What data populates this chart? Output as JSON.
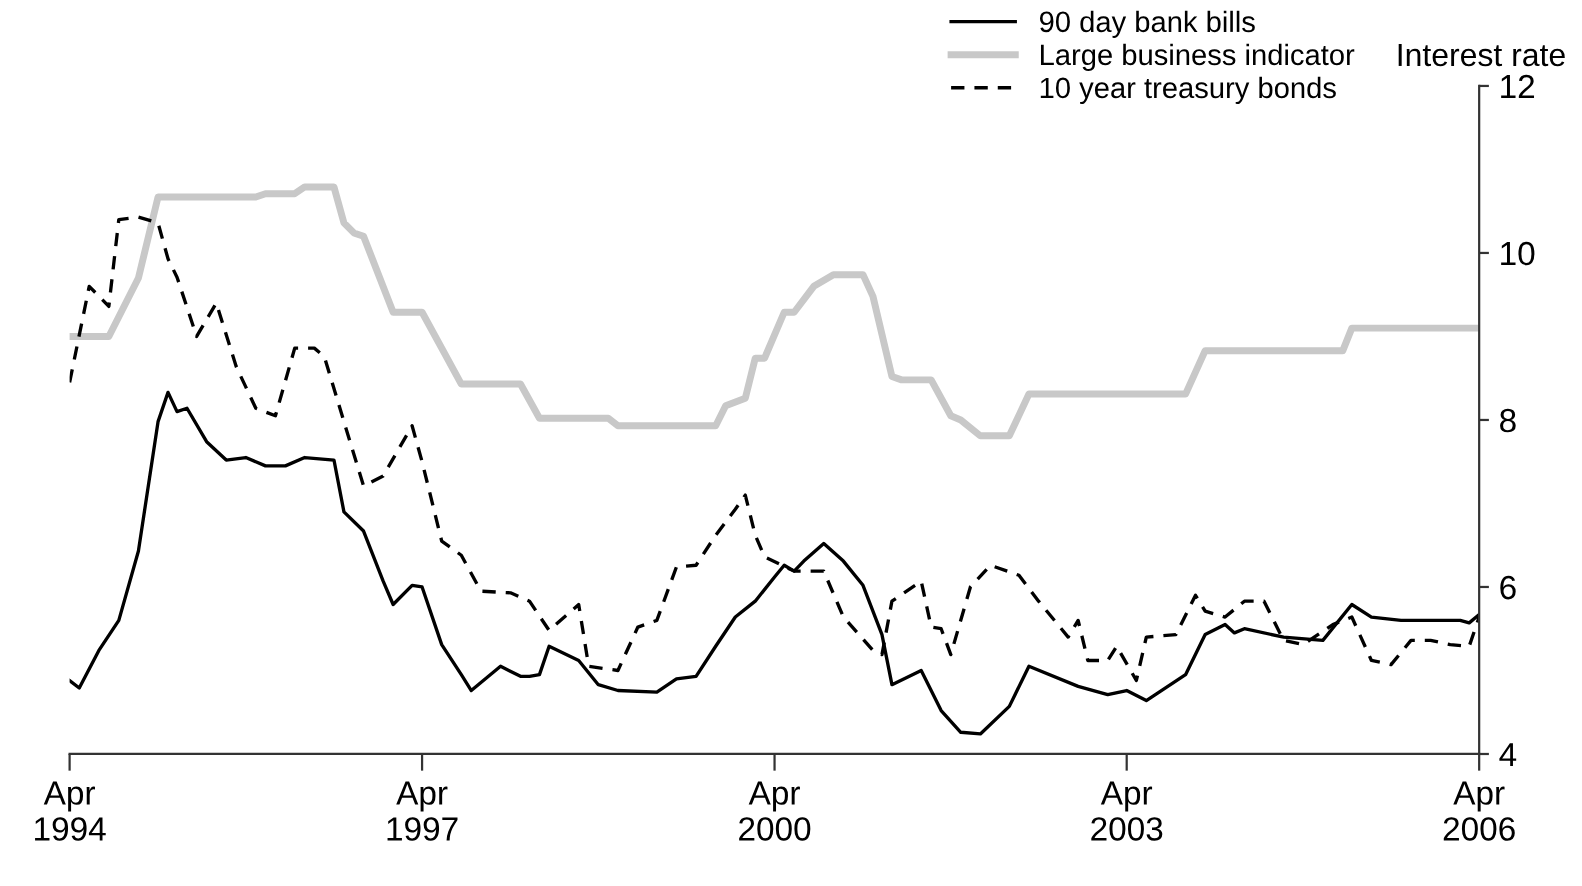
{
  "chart_data": {
    "type": "line",
    "ylabel": "Interest rate",
    "ylim": [
      4,
      12
    ],
    "yticks": [
      4,
      6,
      8,
      10,
      12
    ],
    "xlim": [
      "1994-04",
      "2006-04"
    ],
    "xticks": [
      {
        "value": "1994-04",
        "label": "Apr\n1994"
      },
      {
        "value": "1997-04",
        "label": "Apr\n1997"
      },
      {
        "value": "2000-04",
        "label": "Apr\n2000"
      },
      {
        "value": "2003-04",
        "label": "Apr\n2003"
      },
      {
        "value": "2006-04",
        "label": "Apr\n2006"
      }
    ],
    "grid": false,
    "legend": "top right",
    "marker": "none",
    "series": [
      {
        "name": "90 day bank bills",
        "color": "#000000",
        "line_style": "solid",
        "x": [
          "1994-04",
          "1994-05",
          "1994-07",
          "1994-09",
          "1994-11",
          "1995-01",
          "1995-02",
          "1995-03",
          "1995-04",
          "1995-06",
          "1995-08",
          "1995-10",
          "1995-12",
          "1996-02",
          "1996-04",
          "1996-07",
          "1996-08",
          "1996-10",
          "1996-12",
          "1997-01",
          "1997-03",
          "1997-04",
          "1997-06",
          "1997-08",
          "1997-09",
          "1997-12",
          "1998-02",
          "1998-03",
          "1998-04",
          "1998-05",
          "1998-08",
          "1998-10",
          "1998-12",
          "1999-04",
          "1999-06",
          "1999-08",
          "1999-10",
          "1999-12",
          "2000-02",
          "2000-04",
          "2000-05",
          "2000-06",
          "2000-07",
          "2000-09",
          "2000-11",
          "2001-01",
          "2001-03",
          "2001-04",
          "2001-07",
          "2001-09",
          "2001-11",
          "2002-01",
          "2002-04",
          "2002-06",
          "2002-11",
          "2003-02",
          "2003-04",
          "2003-06",
          "2003-10",
          "2003-12",
          "2004-02",
          "2004-03",
          "2004-04",
          "2004-08",
          "2004-12",
          "2005-03",
          "2005-05",
          "2005-08",
          "2006-02",
          "2006-03",
          "2006-04"
        ],
        "values": [
          4.88,
          4.79,
          5.24,
          5.6,
          6.43,
          7.98,
          8.33,
          8.1,
          8.14,
          7.74,
          7.52,
          7.55,
          7.45,
          7.45,
          7.55,
          7.52,
          6.9,
          6.67,
          6.07,
          5.79,
          6.02,
          6.0,
          5.31,
          4.95,
          4.76,
          5.05,
          4.93,
          4.93,
          4.95,
          5.29,
          5.12,
          4.83,
          4.76,
          4.74,
          4.9,
          4.93,
          5.29,
          5.64,
          5.83,
          6.12,
          6.26,
          6.19,
          6.31,
          6.52,
          6.31,
          6.02,
          5.43,
          4.83,
          5.0,
          4.52,
          4.26,
          4.24,
          4.57,
          5.05,
          4.81,
          4.71,
          4.76,
          4.64,
          4.95,
          5.43,
          5.55,
          5.45,
          5.5,
          5.4,
          5.36,
          5.79,
          5.64,
          5.6,
          5.6,
          5.57,
          5.67
        ]
      },
      {
        "name": "Large business indicator",
        "color": "#c8c8c8",
        "line_style": "solid",
        "x": [
          "1994-04",
          "1994-08",
          "1994-11",
          "1995-01",
          "1995-11",
          "1995-12",
          "1996-03",
          "1996-04",
          "1996-07",
          "1996-08",
          "1996-09",
          "1996-10",
          "1997-01",
          "1997-04",
          "1997-06",
          "1997-08",
          "1998-02",
          "1998-04",
          "1998-11",
          "1998-12",
          "1999-10",
          "1999-11",
          "2000-01",
          "2000-02",
          "2000-03",
          "2000-05",
          "2000-06",
          "2000-08",
          "2000-10",
          "2001-01",
          "2001-02",
          "2001-04",
          "2001-05",
          "2001-08",
          "2001-10",
          "2001-11",
          "2002-01",
          "2002-04",
          "2002-06",
          "2003-10",
          "2003-12",
          "2005-02",
          "2005-03",
          "2006-04"
        ],
        "values": [
          9.0,
          9.0,
          9.7,
          10.67,
          10.67,
          10.71,
          10.71,
          10.79,
          10.79,
          10.36,
          10.24,
          10.2,
          9.29,
          9.29,
          8.86,
          8.43,
          8.43,
          8.02,
          8.02,
          7.93,
          7.93,
          8.17,
          8.26,
          8.74,
          8.74,
          9.29,
          9.29,
          9.6,
          9.74,
          9.74,
          9.48,
          8.52,
          8.48,
          8.48,
          8.05,
          8.0,
          7.81,
          7.81,
          8.31,
          8.31,
          8.83,
          8.83,
          9.1,
          9.1
        ]
      },
      {
        "name": "10 year treasury bonds",
        "color": "#000000",
        "line_style": "dashed",
        "x": [
          "1994-04",
          "1994-06",
          "1994-08",
          "1994-09",
          "1994-11",
          "1995-01",
          "1995-02",
          "1995-03",
          "1995-05",
          "1995-07",
          "1995-09",
          "1995-11",
          "1996-01",
          "1996-03",
          "1996-05",
          "1996-06",
          "1996-08",
          "1996-10",
          "1996-12",
          "1997-03",
          "1997-04",
          "1997-06",
          "1997-08",
          "1997-10",
          "1998-01",
          "1998-03",
          "1998-05",
          "1998-08",
          "1998-09",
          "1998-12",
          "1999-02",
          "1999-04",
          "1999-06",
          "1999-08",
          "1999-10",
          "1999-12",
          "2000-01",
          "2000-02",
          "2000-03",
          "2000-06",
          "2000-09",
          "2000-11",
          "2001-02",
          "2001-03",
          "2001-04",
          "2001-07",
          "2001-08",
          "2001-09",
          "2001-10",
          "2001-12",
          "2002-02",
          "2002-05",
          "2002-07",
          "2002-10",
          "2002-11",
          "2002-12",
          "2003-02",
          "2003-03",
          "2003-05",
          "2003-06",
          "2003-09",
          "2003-11",
          "2003-12",
          "2004-02",
          "2004-04",
          "2004-06",
          "2004-08",
          "2004-10",
          "2005-01",
          "2005-03",
          "2005-05",
          "2005-07",
          "2005-09",
          "2005-11",
          "2006-01",
          "2006-03",
          "2006-04"
        ],
        "values": [
          8.45,
          9.6,
          9.36,
          10.4,
          10.43,
          10.36,
          9.93,
          9.71,
          9.0,
          9.4,
          8.64,
          8.14,
          8.05,
          8.86,
          8.86,
          8.76,
          7.98,
          7.21,
          7.33,
          7.93,
          7.5,
          6.55,
          6.38,
          5.95,
          5.93,
          5.83,
          5.48,
          5.79,
          5.05,
          5.0,
          5.52,
          5.6,
          6.24,
          6.26,
          6.62,
          6.93,
          7.1,
          6.62,
          6.36,
          6.19,
          6.19,
          5.64,
          5.24,
          5.19,
          5.83,
          6.07,
          5.52,
          5.5,
          5.19,
          6.0,
          6.26,
          6.14,
          5.83,
          5.4,
          5.6,
          5.12,
          5.12,
          5.29,
          4.88,
          5.4,
          5.43,
          5.9,
          5.71,
          5.64,
          5.83,
          5.83,
          5.36,
          5.31,
          5.55,
          5.64,
          5.12,
          5.07,
          5.36,
          5.36,
          5.31,
          5.29,
          5.64
        ]
      }
    ]
  }
}
